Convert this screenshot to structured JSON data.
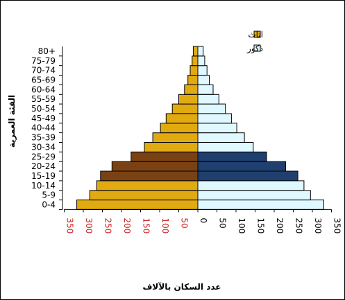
{
  "chart_data": {
    "type": "bar",
    "orientation": "horizontal-population-pyramid",
    "categories": [
      "0-4",
      "5-9",
      "10-14",
      "15-19",
      "20-24",
      "25-29",
      "30-34",
      "35-39",
      "40-44",
      "45-49",
      "50-54",
      "55-59",
      "60-64",
      "65-69",
      "70-74",
      "75-79",
      "80+"
    ],
    "series": [
      {
        "name": "اناث",
        "values": [
          317,
          283,
          265,
          255,
          225,
          175,
          140,
          118,
          98,
          83,
          67,
          50,
          35,
          26,
          20,
          15,
          12
        ],
        "color": "#e0aa10",
        "highlight_color": "#7a4212"
      },
      {
        "name": "ذكور",
        "values": [
          330,
          295,
          278,
          262,
          230,
          180,
          145,
          122,
          102,
          88,
          72,
          55,
          40,
          30,
          24,
          18,
          14
        ],
        "color": "#e0f8ff",
        "highlight_color": "#1f3f6e"
      }
    ],
    "highlight_categories": [
      "15-19",
      "20-24",
      "25-29"
    ],
    "xlabel": "عدد السكان بالآلاف",
    "ylabel": "الفئة العمرية",
    "xlim": [
      -350,
      350
    ],
    "xticks_left": [
      "350",
      "300",
      "250",
      "200",
      "150",
      "100",
      "50"
    ],
    "xticks_right": [
      "0",
      "50",
      "100",
      "150",
      "200",
      "250",
      "300",
      "350"
    ],
    "left_tick_color": "#cc2222",
    "right_tick_color": "#000000",
    "grid": false,
    "legend_position": "top-right"
  }
}
